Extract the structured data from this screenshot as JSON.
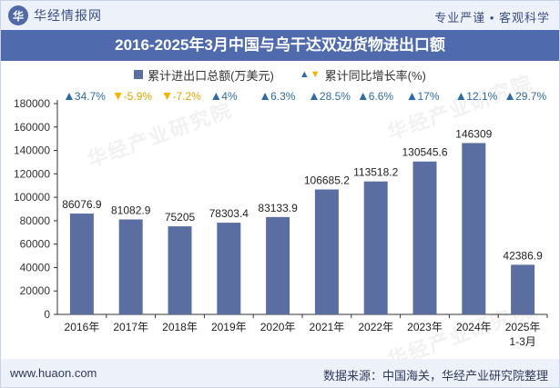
{
  "header": {
    "brand": "华经情报网",
    "tagline": "专业严谨 • 客观科学"
  },
  "colors": {
    "bar": "#5b6ea2",
    "title_bg": "#4f6bad",
    "up_triangle": "#2f6aa3",
    "down_triangle": "#f4b400"
  },
  "chart_data": {
    "type": "bar",
    "title": "2016-2025年3月中国与乌干达双边货物进出口额",
    "legend": {
      "position": "top-center",
      "series_label": "累计进出口总额(万美元)",
      "growth_label": "累计同比增长率(%)"
    },
    "categories": [
      "2016年",
      "2017年",
      "2018年",
      "2019年",
      "2020年",
      "2021年",
      "2022年",
      "2023年",
      "2024年",
      "2025年1-3月"
    ],
    "values": [
      86076.9,
      81082.9,
      75205,
      78303.4,
      83133.9,
      106685.2,
      113518.2,
      130545.6,
      146309,
      42386.9
    ],
    "value_labels": [
      "86076.9",
      "81082.9",
      "75205",
      "78303.4",
      "83133.9",
      "106685.2",
      "113518.2",
      "130545.6",
      "146309",
      "42386.9"
    ],
    "growth_rates": [
      34.7,
      -5.9,
      -7.2,
      4,
      6.3,
      28.5,
      6.6,
      17,
      12.1,
      29.7
    ],
    "growth_labels": [
      "34.7%",
      "-5.9%",
      "-7.2%",
      "4%",
      "6.3%",
      "28.5%",
      "6.6%",
      "17%",
      "12.1%",
      "29.7%"
    ],
    "yticks": [
      "0",
      "20000",
      "40000",
      "60000",
      "80000",
      "100000",
      "120000",
      "140000",
      "160000",
      "180000"
    ],
    "ylim": [
      0,
      180000
    ],
    "grid": false
  },
  "footer": {
    "website": "www.huaon.com",
    "source": "数据来源：中国海关，华经产业研究院整理"
  }
}
